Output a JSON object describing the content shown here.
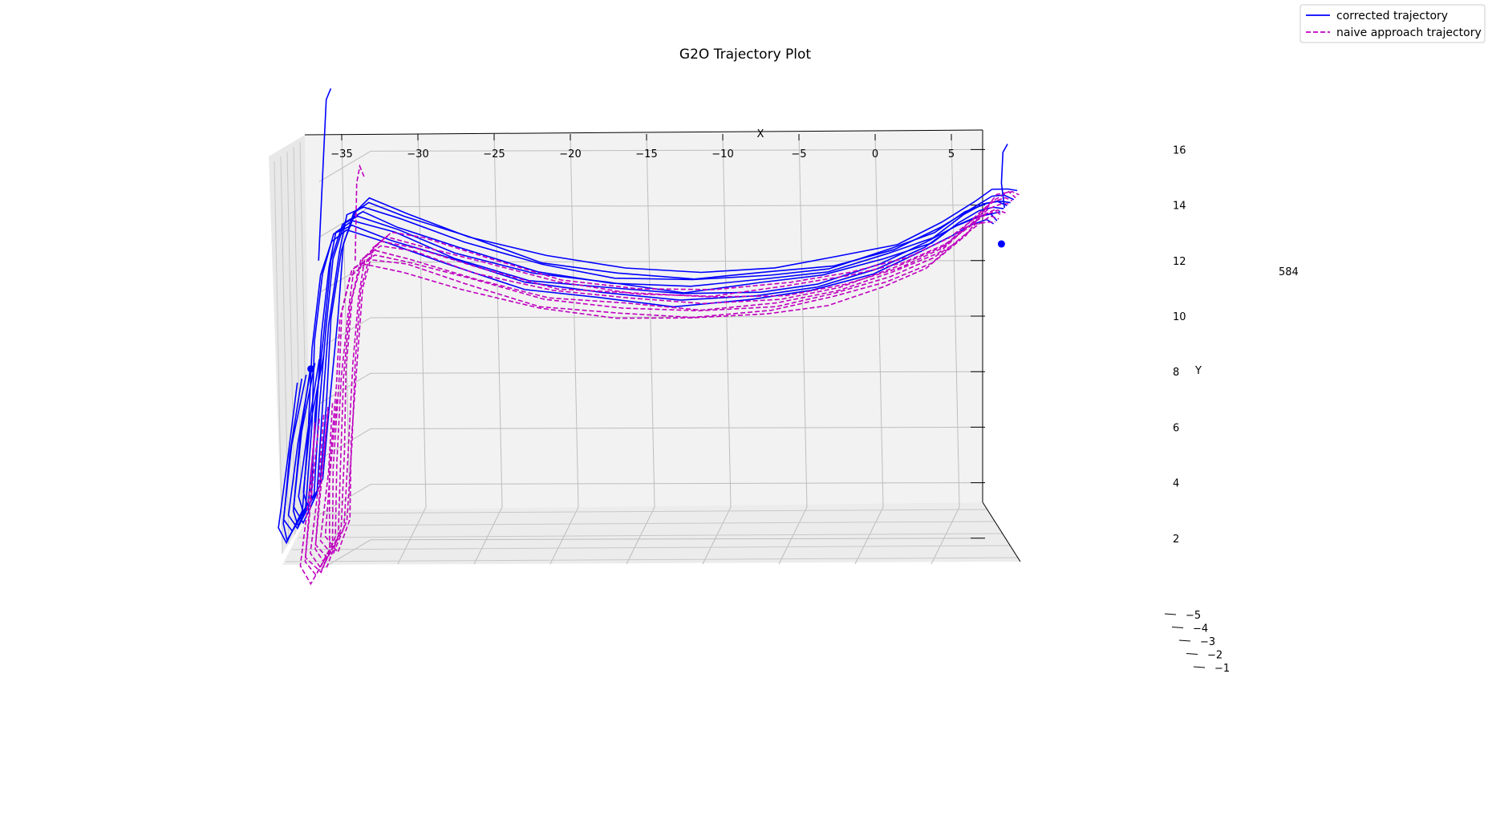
{
  "chart_data": {
    "type": "line",
    "projection": "3d",
    "title": "G2O Trajectory Plot",
    "xlabel": "X",
    "ylabel": "Y",
    "zlabel": "",
    "x_ticks": [
      "−35",
      "−30",
      "−25",
      "−20",
      "−15",
      "−10",
      "−5",
      "0",
      "5"
    ],
    "y_ticks": [
      "2",
      "4",
      "6",
      "8",
      "10",
      "12",
      "14",
      "16"
    ],
    "z_ticks": [
      "−1",
      "−2",
      "−3",
      "−4",
      "−5"
    ],
    "xlim": [
      -37,
      7
    ],
    "ylim": [
      2,
      17
    ],
    "grid": true,
    "legend_position": "top-right",
    "legend": [
      {
        "label": "corrected trajectory",
        "color": "#0000ff",
        "style": "solid"
      },
      {
        "label": "naive approach trajectory",
        "color": "#bf00bf",
        "style": "dashed"
      }
    ],
    "annotations": [
      {
        "text": "584"
      }
    ],
    "series": [
      {
        "key": "corrected",
        "color": "#0000ff",
        "style": "solid",
        "loops": 8,
        "path": [
          [
            -36.7,
            8.1
          ],
          [
            -37.5,
            5.5
          ],
          [
            -38.1,
            3.0
          ],
          [
            -37.6,
            2.4
          ],
          [
            -36.6,
            3.5
          ],
          [
            -36.2,
            6.5
          ],
          [
            -35.8,
            9.5
          ],
          [
            -35.3,
            12.0
          ],
          [
            -34.6,
            13.3
          ],
          [
            -33.5,
            13.6
          ],
          [
            -31.0,
            13.2
          ],
          [
            -27.0,
            12.4
          ],
          [
            -22.0,
            11.6
          ],
          [
            -17.0,
            11.2
          ],
          [
            -12.0,
            11.0
          ],
          [
            -7.0,
            11.2
          ],
          [
            -3.0,
            11.5
          ],
          [
            1.0,
            12.1
          ],
          [
            4.0,
            12.8
          ],
          [
            6.0,
            13.5
          ],
          [
            7.3,
            13.9
          ],
          [
            8.3,
            14.0
          ],
          [
            8.8,
            13.9
          ]
        ],
        "highlight_points": [
          [
            -36.7,
            8.1
          ],
          [
            8.6,
            12.6
          ]
        ]
      },
      {
        "key": "naive",
        "color": "#bf00bf",
        "style": "dashed",
        "loops": 8,
        "path": [
          [
            -35.8,
            6.5
          ],
          [
            -36.2,
            4.0
          ],
          [
            -36.6,
            1.6
          ],
          [
            -35.8,
            1.0
          ],
          [
            -34.8,
            2.2
          ],
          [
            -34.7,
            5.0
          ],
          [
            -34.4,
            8.0
          ],
          [
            -34.0,
            10.5
          ],
          [
            -33.4,
            12.0
          ],
          [
            -32.3,
            12.5
          ],
          [
            -30.0,
            12.2
          ],
          [
            -26.0,
            11.5
          ],
          [
            -21.0,
            10.8
          ],
          [
            -16.0,
            10.5
          ],
          [
            -11.0,
            10.4
          ],
          [
            -6.0,
            10.6
          ],
          [
            -2.0,
            11.0
          ],
          [
            1.5,
            11.6
          ],
          [
            4.5,
            12.3
          ],
          [
            6.5,
            13.2
          ],
          [
            7.6,
            13.8
          ],
          [
            8.4,
            14.0
          ],
          [
            8.9,
            13.9
          ]
        ]
      }
    ]
  }
}
